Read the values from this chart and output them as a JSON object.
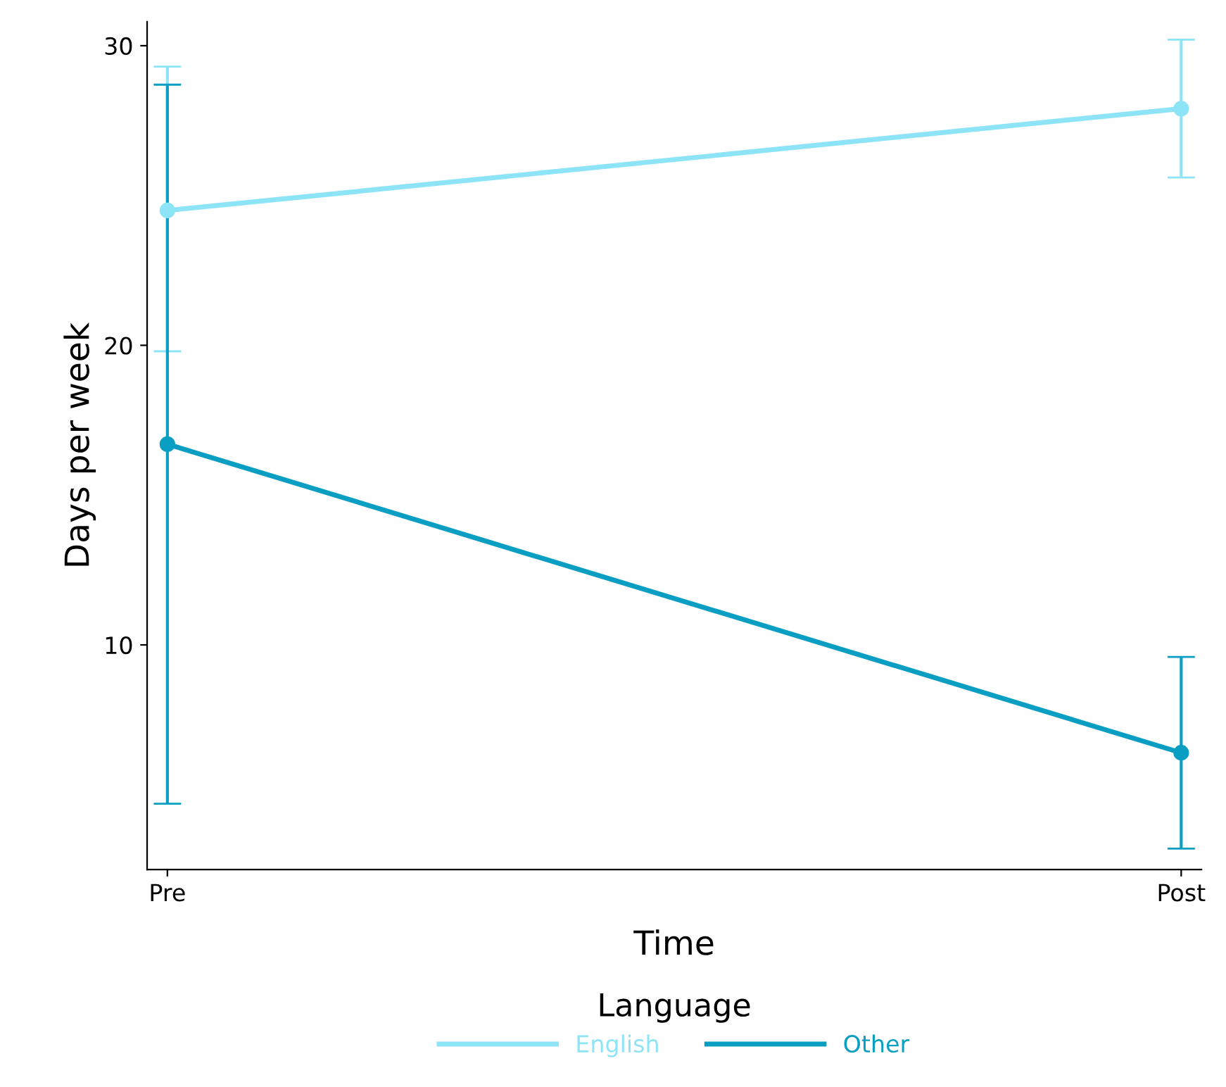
{
  "chart_data": {
    "type": "line",
    "xlabel": "Time",
    "ylabel": "Days per week",
    "legend_title": "Language",
    "categories": [
      "Pre",
      "Post"
    ],
    "series": [
      {
        "name": "English",
        "color": "#8de4f7",
        "values": [
          24.5,
          27.9
        ],
        "errors": [
          [
            19.8,
            29.3
          ],
          [
            25.6,
            30.2
          ]
        ]
      },
      {
        "name": "Other",
        "color": "#0a9fc2",
        "values": [
          16.7,
          6.4
        ],
        "errors": [
          [
            4.7,
            28.7
          ],
          [
            3.2,
            9.6
          ]
        ]
      }
    ],
    "ylim": [
      2.5,
      30.8
    ],
    "yticks": [
      10,
      20,
      30
    ],
    "grid": false,
    "legend": "bottom",
    "marker": "circle",
    "line_style": "solid"
  }
}
